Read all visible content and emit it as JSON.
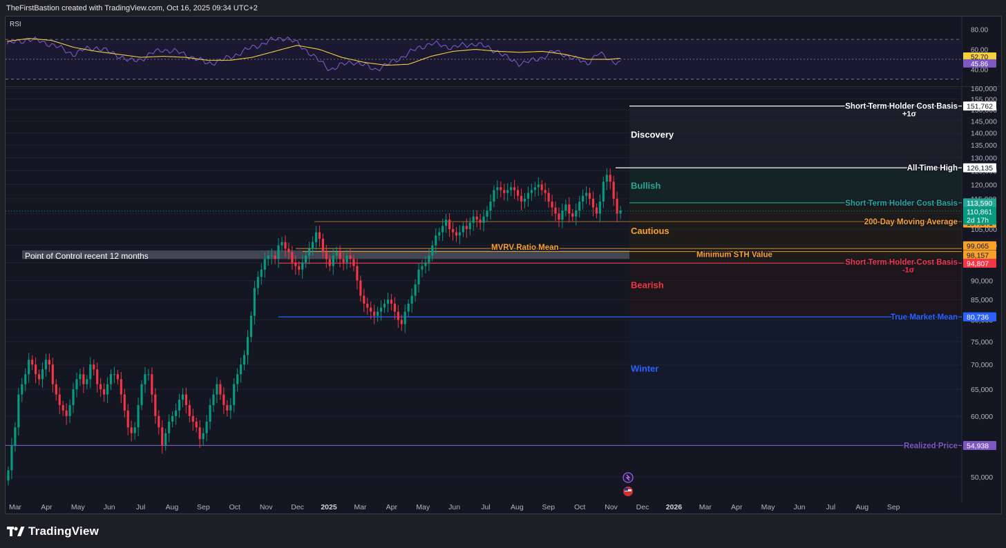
{
  "header": {
    "credit": "TheFirstBastion created with TradingView.com, Oct 16, 2025 09:34 UTC+2"
  },
  "brand": {
    "name": "TradingView",
    "icon": "tradingview-logo-icon"
  },
  "chart_data": {
    "type": "candlestick",
    "y_scale": "log",
    "price_axis": {
      "ticks": [
        50000,
        55000,
        60000,
        65000,
        70000,
        75000,
        80000,
        85000,
        90000,
        95000,
        100000,
        105000,
        110000,
        115000,
        120000,
        125000,
        130000,
        135000,
        140000,
        145000,
        150000,
        155000,
        160000
      ],
      "range": [
        47000,
        160000
      ]
    },
    "time_axis": {
      "labels": [
        "Mar",
        "Apr",
        "May",
        "Jun",
        "Jul",
        "Aug",
        "Sep",
        "Oct",
        "Nov",
        "Dec",
        "2025",
        "Mar",
        "Apr",
        "May",
        "Jun",
        "Jul",
        "Aug",
        "Sep",
        "Oct",
        "Nov",
        "Dec",
        "2026",
        "Mar",
        "Apr",
        "May",
        "Jun",
        "Jul",
        "Aug",
        "Sep"
      ],
      "bold": [
        "2025",
        "2026"
      ]
    },
    "rsi": {
      "label": "RSI",
      "ticks": [
        40,
        60,
        80
      ],
      "bands": [
        30,
        50,
        70
      ],
      "range": [
        25,
        86
      ],
      "rsi_last": 45.86,
      "ma_last": 52.7,
      "rsi_color": "#7e57c2",
      "ma_color": "#f4d03f",
      "rsi_anchors": [
        [
          0,
          65
        ],
        [
          1,
          68
        ],
        [
          2,
          70
        ],
        [
          3,
          68
        ],
        [
          4,
          65
        ],
        [
          5,
          60
        ],
        [
          6,
          55
        ],
        [
          7,
          60
        ],
        [
          8,
          62
        ],
        [
          9,
          58
        ],
        [
          10,
          54
        ],
        [
          11,
          48
        ],
        [
          12,
          50
        ],
        [
          13,
          56
        ],
        [
          14,
          60
        ],
        [
          15,
          58
        ],
        [
          16,
          55
        ],
        [
          17,
          50
        ],
        [
          18,
          46
        ],
        [
          19,
          48
        ],
        [
          20,
          52
        ],
        [
          21,
          57
        ],
        [
          22,
          62
        ],
        [
          23,
          66
        ],
        [
          24,
          70
        ],
        [
          25,
          72
        ],
        [
          26,
          66
        ],
        [
          27,
          58
        ],
        [
          28,
          48
        ],
        [
          29,
          40
        ],
        [
          30,
          44
        ],
        [
          31,
          48
        ],
        [
          32,
          44
        ],
        [
          33,
          40
        ],
        [
          34,
          44
        ],
        [
          35,
          50
        ],
        [
          36,
          56
        ],
        [
          37,
          62
        ],
        [
          38,
          66
        ],
        [
          39,
          64
        ],
        [
          40,
          62
        ],
        [
          41,
          64
        ],
        [
          42,
          66
        ],
        [
          43,
          62
        ],
        [
          44,
          58
        ],
        [
          45,
          50
        ],
        [
          46,
          46
        ],
        [
          47,
          48
        ],
        [
          48,
          52
        ],
        [
          49,
          58
        ],
        [
          50,
          55
        ],
        [
          51,
          50
        ],
        [
          52,
          46
        ],
        [
          53,
          56
        ],
        [
          54,
          50
        ],
        [
          55,
          46
        ]
      ],
      "ma_anchors": [
        [
          0,
          68
        ],
        [
          2,
          71
        ],
        [
          4,
          69
        ],
        [
          6,
          62
        ],
        [
          8,
          58
        ],
        [
          10,
          55
        ],
        [
          12,
          52
        ],
        [
          14,
          53
        ],
        [
          16,
          52
        ],
        [
          18,
          49
        ],
        [
          20,
          49
        ],
        [
          22,
          52
        ],
        [
          24,
          58
        ],
        [
          26,
          64
        ],
        [
          28,
          60
        ],
        [
          30,
          52
        ],
        [
          32,
          47
        ],
        [
          34,
          44
        ],
        [
          36,
          45
        ],
        [
          38,
          53
        ],
        [
          40,
          58
        ],
        [
          42,
          60
        ],
        [
          44,
          58
        ],
        [
          46,
          57
        ],
        [
          48,
          58
        ],
        [
          50,
          55
        ],
        [
          52,
          50
        ],
        [
          54,
          50
        ],
        [
          55,
          51
        ]
      ]
    },
    "candles_close": [
      51000,
      55000,
      58000,
      64000,
      66000,
      68000,
      71000,
      70000,
      68000,
      67000,
      69000,
      71000,
      70000,
      66000,
      64000,
      62000,
      61000,
      60000,
      62000,
      65000,
      67000,
      68000,
      66000,
      67000,
      70000,
      69000,
      66000,
      65000,
      64000,
      66000,
      68000,
      68000,
      67000,
      64000,
      61000,
      58000,
      57000,
      58000,
      62000,
      66000,
      68000,
      68000,
      64000,
      60000,
      58000,
      55000,
      57000,
      59000,
      60000,
      61000,
      63000,
      64000,
      62000,
      60000,
      59000,
      58000,
      56000,
      57000,
      59000,
      62000,
      64000,
      66000,
      64000,
      62000,
      61000,
      62000,
      66000,
      68000,
      70000,
      72000,
      76000,
      81000,
      88000,
      91000,
      93000,
      96000,
      97000,
      97000,
      96000,
      100000,
      101000,
      99000,
      98000,
      95000,
      94000,
      93000,
      95000,
      97000,
      99000,
      101000,
      104000,
      102000,
      98000,
      96000,
      94000,
      97000,
      98000,
      96000,
      95000,
      97000,
      96000,
      94000,
      90000,
      86000,
      84000,
      83000,
      82000,
      81000,
      82000,
      83000,
      84000,
      85000,
      84000,
      82000,
      80000,
      79000,
      82000,
      84000,
      86000,
      89000,
      93000,
      94000,
      95000,
      97000,
      100000,
      103000,
      104000,
      106000,
      108000,
      105000,
      104000,
      103000,
      104000,
      106000,
      105000,
      107000,
      109000,
      108000,
      107000,
      109000,
      111000,
      114000,
      118000,
      119000,
      118000,
      117000,
      118000,
      119000,
      118000,
      116000,
      114000,
      115000,
      117000,
      118000,
      119000,
      120000,
      118000,
      117000,
      114000,
      112000,
      110000,
      108000,
      111000,
      113000,
      110000,
      109000,
      111000,
      114000,
      116000,
      117000,
      115000,
      112000,
      110000,
      114000,
      121000,
      123500,
      121000,
      115000,
      110000,
      111000
    ],
    "levels": [
      {
        "label": "Short Term Holder Cost Basis",
        "sub": "+1σ",
        "value": 151762,
        "badge": "151,762",
        "color": "#ffffff",
        "badge_bg": "#ffffff",
        "badge_fg": "#131722"
      },
      {
        "label": "All Time High",
        "value": 126135,
        "badge": "126,135",
        "color": "#ffffff",
        "badge_bg": "#ffffff",
        "badge_fg": "#131722"
      },
      {
        "label": "Short Term Holder Cost Basis",
        "value": 113590,
        "badge": "113,590",
        "color": "#26a69a",
        "badge_bg": "#26a69a",
        "badge_fg": "#ffffff"
      },
      {
        "label": "200-Day Moving Average",
        "value": 107371,
        "badge": "107,371",
        "color": "#f7a12b",
        "badge_bg": "#f7a12b",
        "badge_fg": "#131722"
      },
      {
        "label": "MVRV Ratio Mean",
        "value": 99065,
        "badge": "99,065",
        "color": "#f7a12b",
        "badge_bg": "#f7a12b",
        "badge_fg": "#131722"
      },
      {
        "label": "Minimum STH Value",
        "value": 98157,
        "badge": "98,157",
        "color": "#f7a12b",
        "badge_bg": "#f7a12b",
        "badge_fg": "#131722"
      },
      {
        "label": "Short Term Holder Cost Basis",
        "sub": "-1σ",
        "value": 94807,
        "badge": "94,807",
        "color": "#f23645",
        "badge_bg": "#f23645",
        "badge_fg": "#ffffff"
      },
      {
        "label": "True Market Mean",
        "value": 80736,
        "badge": "80,736",
        "color": "#2962ff",
        "badge_bg": "#2962ff",
        "badge_fg": "#ffffff"
      },
      {
        "label": "Realized Price",
        "value": 54938,
        "badge": "54,938",
        "color": "#7e57c2",
        "badge_bg": "#7e57c2",
        "badge_fg": "#ffffff"
      }
    ],
    "current_price": {
      "value": 110861,
      "badge": "110,861",
      "countdown": "2d 17h",
      "color": "#089981"
    },
    "zones": [
      {
        "label": "Discovery",
        "color": "#ffffff"
      },
      {
        "label": "Bullish",
        "color": "#26a69a"
      },
      {
        "label": "Cautious",
        "color": "#f7a12b"
      },
      {
        "label": "Bearish",
        "color": "#f23645"
      },
      {
        "label": "Winter",
        "color": "#2962ff"
      }
    ],
    "poc": {
      "label": "Point of Control recent 12 months",
      "low": 96000,
      "high": 98500
    },
    "colors": {
      "up": "#089981",
      "down": "#f23645",
      "grid": "#1f2230",
      "axis_text": "#b2b5be"
    }
  }
}
